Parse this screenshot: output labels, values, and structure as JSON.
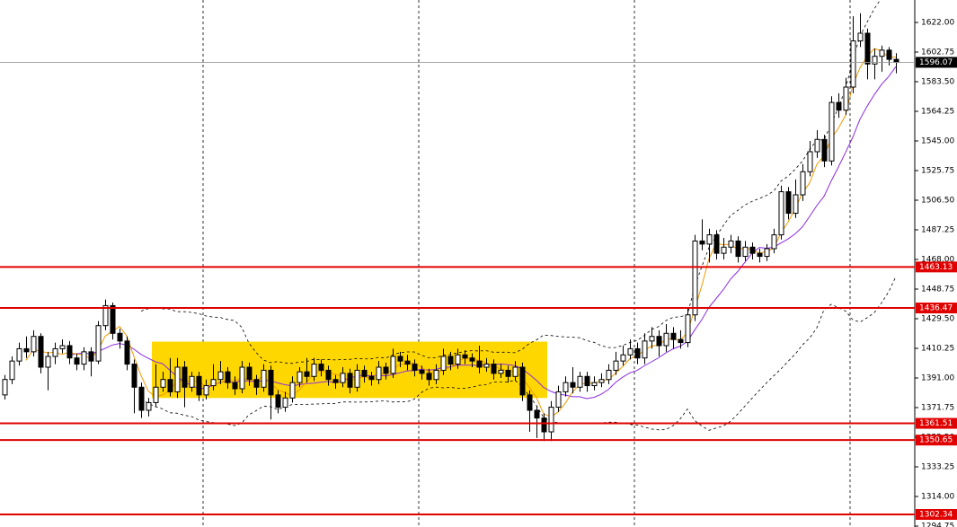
{
  "chart_data": {
    "type": "candlestick",
    "ylim": [
      1294.17,
      1636.58
    ],
    "yticks": [
      {
        "value": 1622,
        "label": "1622.00"
      },
      {
        "value": 1602.75,
        "label": "1602.75"
      },
      {
        "value": 1583.5,
        "label": "1583.50"
      },
      {
        "value": 1564.25,
        "label": "1564.25"
      },
      {
        "value": 1545,
        "label": "1545.00"
      },
      {
        "value": 1525.75,
        "label": "1525.75"
      },
      {
        "value": 1506.5,
        "label": "1506.50"
      },
      {
        "value": 1487.25,
        "label": "1487.25"
      },
      {
        "value": 1468,
        "label": "1468.00"
      },
      {
        "value": 1448.75,
        "label": "1448.75"
      },
      {
        "value": 1429.5,
        "label": "1429.50"
      },
      {
        "value": 1410.25,
        "label": "1410.25"
      },
      {
        "value": 1391,
        "label": "1391.00"
      },
      {
        "value": 1371.75,
        "label": "1371.75"
      },
      {
        "value": 1352.5,
        "label": "1352.50"
      },
      {
        "value": 1333.25,
        "label": "1333.25"
      },
      {
        "value": 1314,
        "label": "1314.00"
      },
      {
        "value": 1294.75,
        "label": "1294.75"
      }
    ],
    "current_price": 1596.07,
    "levels": [
      1463.13,
      1436.47,
      1361.51,
      1350.65,
      1302.34
    ],
    "level_color": "#e00000",
    "range_box": {
      "low": 1378,
      "high": 1414.6,
      "color": "#ffd700"
    },
    "ohlc": [
      [
        1380,
        1393,
        1377,
        1390
      ],
      [
        1390,
        1405,
        1387,
        1402
      ],
      [
        1402,
        1414,
        1399,
        1410
      ],
      [
        1410,
        1418,
        1404,
        1408
      ],
      [
        1408,
        1422,
        1405,
        1418
      ],
      [
        1418,
        1420,
        1394,
        1398
      ],
      [
        1398,
        1408,
        1383,
        1405
      ],
      [
        1405,
        1414,
        1400,
        1410
      ],
      [
        1410,
        1416,
        1407,
        1412
      ],
      [
        1412,
        1415,
        1400,
        1404
      ],
      [
        1404,
        1407,
        1396,
        1400
      ],
      [
        1400,
        1411,
        1396,
        1408
      ],
      [
        1408,
        1411,
        1392,
        1402
      ],
      [
        1402,
        1428,
        1400,
        1425
      ],
      [
        1425,
        1442,
        1422,
        1438
      ],
      [
        1438,
        1440,
        1416,
        1420
      ],
      [
        1420,
        1423,
        1410,
        1415
      ],
      [
        1415,
        1418,
        1396,
        1400
      ],
      [
        1400,
        1403,
        1368,
        1385
      ],
      [
        1385,
        1388,
        1365,
        1370
      ],
      [
        1370,
        1378,
        1366,
        1375
      ],
      [
        1375,
        1400,
        1372,
        1385
      ],
      [
        1385,
        1395,
        1382,
        1390
      ],
      [
        1390,
        1404,
        1379,
        1382
      ],
      [
        1382,
        1404,
        1378,
        1398
      ],
      [
        1398,
        1402,
        1372,
        1385
      ],
      [
        1385,
        1395,
        1382,
        1392
      ],
      [
        1392,
        1395,
        1376,
        1380
      ],
      [
        1380,
        1390,
        1377,
        1386
      ],
      [
        1386,
        1400,
        1383,
        1390
      ],
      [
        1390,
        1402,
        1387,
        1395
      ],
      [
        1395,
        1398,
        1384,
        1388
      ],
      [
        1388,
        1392,
        1380,
        1384
      ],
      [
        1384,
        1402,
        1381,
        1398
      ],
      [
        1398,
        1401,
        1386,
        1390
      ],
      [
        1390,
        1393,
        1380,
        1385
      ],
      [
        1385,
        1400,
        1382,
        1396
      ],
      [
        1396,
        1399,
        1364,
        1380
      ],
      [
        1380,
        1383,
        1368,
        1372
      ],
      [
        1372,
        1382,
        1369,
        1378
      ],
      [
        1378,
        1392,
        1375,
        1388
      ],
      [
        1388,
        1398,
        1385,
        1395
      ],
      [
        1395,
        1404,
        1388,
        1392
      ],
      [
        1392,
        1404,
        1389,
        1400
      ],
      [
        1400,
        1403,
        1392,
        1396
      ],
      [
        1396,
        1399,
        1386,
        1390
      ],
      [
        1390,
        1393,
        1384,
        1388
      ],
      [
        1388,
        1398,
        1385,
        1394
      ],
      [
        1394,
        1397,
        1381,
        1385
      ],
      [
        1385,
        1400,
        1382,
        1396
      ],
      [
        1396,
        1399,
        1388,
        1392
      ],
      [
        1392,
        1395,
        1386,
        1390
      ],
      [
        1390,
        1402,
        1387,
        1398
      ],
      [
        1398,
        1401,
        1390,
        1394
      ],
      [
        1394,
        1410,
        1391,
        1405
      ],
      [
        1405,
        1408,
        1398,
        1402
      ],
      [
        1402,
        1406,
        1396,
        1400
      ],
      [
        1400,
        1403,
        1392,
        1396
      ],
      [
        1396,
        1399,
        1390,
        1394
      ],
      [
        1394,
        1397,
        1386,
        1390
      ],
      [
        1390,
        1400,
        1387,
        1396
      ],
      [
        1396,
        1410,
        1393,
        1405
      ],
      [
        1405,
        1408,
        1396,
        1400
      ],
      [
        1400,
        1410,
        1397,
        1406
      ],
      [
        1406,
        1409,
        1400,
        1404
      ],
      [
        1404,
        1407,
        1398,
        1402
      ],
      [
        1402,
        1412,
        1394,
        1398
      ],
      [
        1398,
        1404,
        1395,
        1400
      ],
      [
        1400,
        1403,
        1390,
        1394
      ],
      [
        1394,
        1400,
        1391,
        1396
      ],
      [
        1396,
        1399,
        1388,
        1392
      ],
      [
        1392,
        1402,
        1389,
        1398
      ],
      [
        1398,
        1401,
        1376,
        1380
      ],
      [
        1380,
        1383,
        1356,
        1370
      ],
      [
        1370,
        1373,
        1352,
        1365
      ],
      [
        1365,
        1368,
        1350,
        1356
      ],
      [
        1356,
        1376,
        1350,
        1372
      ],
      [
        1372,
        1386,
        1369,
        1382
      ],
      [
        1382,
        1392,
        1379,
        1388
      ],
      [
        1388,
        1398,
        1381,
        1385
      ],
      [
        1385,
        1395,
        1382,
        1392
      ],
      [
        1392,
        1395,
        1382,
        1386
      ],
      [
        1386,
        1392,
        1383,
        1388
      ],
      [
        1388,
        1394,
        1385,
        1390
      ],
      [
        1390,
        1400,
        1387,
        1396
      ],
      [
        1396,
        1408,
        1393,
        1402
      ],
      [
        1402,
        1412,
        1399,
        1406
      ],
      [
        1406,
        1416,
        1403,
        1410
      ],
      [
        1410,
        1414,
        1400,
        1404
      ],
      [
        1404,
        1420,
        1400,
        1415
      ],
      [
        1415,
        1424,
        1410,
        1418
      ],
      [
        1418,
        1422,
        1405,
        1412
      ],
      [
        1412,
        1426,
        1408,
        1420
      ],
      [
        1420,
        1424,
        1410,
        1416
      ],
      [
        1416,
        1422,
        1410,
        1414
      ],
      [
        1414,
        1436,
        1411,
        1432
      ],
      [
        1432,
        1484,
        1428,
        1480
      ],
      [
        1480,
        1494,
        1474,
        1478
      ],
      [
        1478,
        1488,
        1466,
        1484
      ],
      [
        1484,
        1487,
        1468,
        1472
      ],
      [
        1472,
        1482,
        1468,
        1476
      ],
      [
        1476,
        1484,
        1472,
        1480
      ],
      [
        1480,
        1483,
        1466,
        1470
      ],
      [
        1470,
        1480,
        1467,
        1476
      ],
      [
        1476,
        1479,
        1468,
        1472
      ],
      [
        1472,
        1475,
        1466,
        1470
      ],
      [
        1470,
        1478,
        1467,
        1475
      ],
      [
        1475,
        1488,
        1472,
        1484
      ],
      [
        1484,
        1516,
        1481,
        1512
      ],
      [
        1512,
        1515,
        1494,
        1498
      ],
      [
        1498,
        1520,
        1495,
        1510
      ],
      [
        1510,
        1530,
        1506,
        1525
      ],
      [
        1525,
        1545,
        1522,
        1538
      ],
      [
        1538,
        1552,
        1534,
        1546
      ],
      [
        1546,
        1549,
        1528,
        1532
      ],
      [
        1532,
        1574,
        1529,
        1570
      ],
      [
        1570,
        1576,
        1560,
        1565
      ],
      [
        1565,
        1586,
        1562,
        1580
      ],
      [
        1580,
        1626,
        1576,
        1610
      ],
      [
        1610,
        1628,
        1606,
        1615
      ],
      [
        1615,
        1618,
        1585,
        1595
      ],
      [
        1595,
        1605,
        1585,
        1600
      ],
      [
        1600,
        1607,
        1590,
        1604
      ],
      [
        1604,
        1606,
        1594,
        1598
      ],
      [
        1598,
        1602,
        1589,
        1596.07
      ]
    ]
  }
}
